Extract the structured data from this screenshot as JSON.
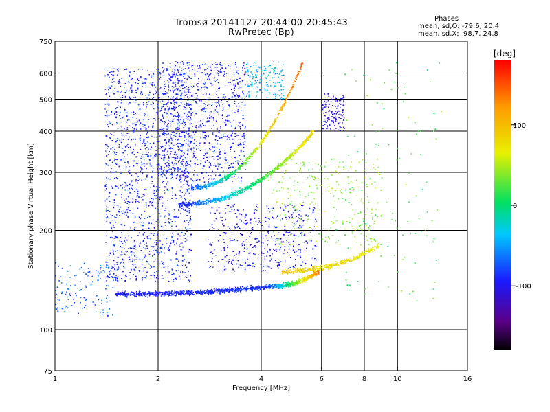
{
  "header": {
    "title": "Tromsø 20141127 20:44:00-20:45:43",
    "subtitle": "RwPretec (Bp)"
  },
  "phase_legend": {
    "heading": "Phases",
    "line_o": "mean, sd,O: -79.6, 20.4",
    "line_x": "mean, sd,X:  98.7, 24.8"
  },
  "colorbar": {
    "unit": "[deg]",
    "ticks": [
      {
        "value": 100,
        "label": "100"
      },
      {
        "value": 0,
        "label": "0"
      },
      {
        "value": -100,
        "label": "-100"
      }
    ],
    "range": [
      -180,
      180
    ],
    "colors": [
      "#000000",
      "#5a0088",
      "#1a1aff",
      "#00c8ff",
      "#00e060",
      "#e8f000",
      "#ff9a00",
      "#ff0000"
    ]
  },
  "chart_data": {
    "type": "scatter",
    "title": "Tromsø 20141127 20:44:00-20:45:43",
    "subtitle": "RwPretec (Bp)",
    "xlabel": "Frequency [MHz]",
    "ylabel": "Stationary phase Virtual Height [km]",
    "x_scale": "log",
    "y_scale": "log",
    "xlim": [
      1,
      16
    ],
    "ylim": [
      75,
      750
    ],
    "x_ticks": [
      1,
      2,
      4,
      6,
      8,
      10,
      16
    ],
    "y_ticks": [
      75,
      100,
      200,
      300,
      400,
      500,
      600,
      750
    ],
    "x_grid": [
      2,
      4,
      6,
      8,
      10
    ],
    "y_grid": [
      100,
      200,
      300,
      400,
      500,
      600
    ],
    "color_by": "phase [deg]",
    "traces": [
      {
        "f_start": 1.5,
        "f_end": 4.2,
        "h_start": 128,
        "h_end": 135,
        "phase_start": -95,
        "phase_end": -85,
        "dense": 1
      },
      {
        "f_start": 4.2,
        "f_end": 5.9,
        "h_start": 135,
        "h_end": 150,
        "phase_start": -85,
        "phase_end": 140,
        "dense": 0.6
      },
      {
        "f_start": 4.6,
        "f_end": 8.8,
        "h_start": 150,
        "h_end": 180,
        "phase_start": 90,
        "phase_end": 70,
        "dense": 0.5
      },
      {
        "f_start": 2.3,
        "f_end": 5.7,
        "h_start": 240,
        "h_end": 400,
        "phase_start": -95,
        "phase_end": 85,
        "dense": 1
      },
      {
        "f_start": 2.5,
        "f_end": 5.3,
        "h_start": 270,
        "h_end": 650,
        "phase_start": -80,
        "phase_end": 150,
        "dense": 0.7
      }
    ],
    "clusters": [
      {
        "f_min": 1.4,
        "f_max": 2.5,
        "h_min": 140,
        "h_max": 620,
        "phase": -90,
        "count": 1400
      },
      {
        "f_min": 1.0,
        "f_max": 1.5,
        "h_min": 110,
        "h_max": 160,
        "phase": -70,
        "count": 120
      },
      {
        "f_min": 2.0,
        "f_max": 3.6,
        "h_min": 280,
        "h_max": 650,
        "phase": -95,
        "count": 900
      },
      {
        "f_min": 3.6,
        "f_max": 4.7,
        "h_min": 500,
        "h_max": 650,
        "phase": -40,
        "count": 150
      },
      {
        "f_min": 6.0,
        "f_max": 7.0,
        "h_min": 400,
        "h_max": 520,
        "phase": -110,
        "count": 130
      },
      {
        "f_min": 2.8,
        "f_max": 5.8,
        "h_min": 150,
        "h_max": 240,
        "phase": -100,
        "count": 420
      },
      {
        "f_min": 4.2,
        "f_max": 9.0,
        "h_min": 180,
        "h_max": 330,
        "phase": 40,
        "count": 300
      },
      {
        "f_min": 7.0,
        "f_max": 13.5,
        "h_min": 120,
        "h_max": 650,
        "phase": 20,
        "count": 120
      }
    ]
  }
}
